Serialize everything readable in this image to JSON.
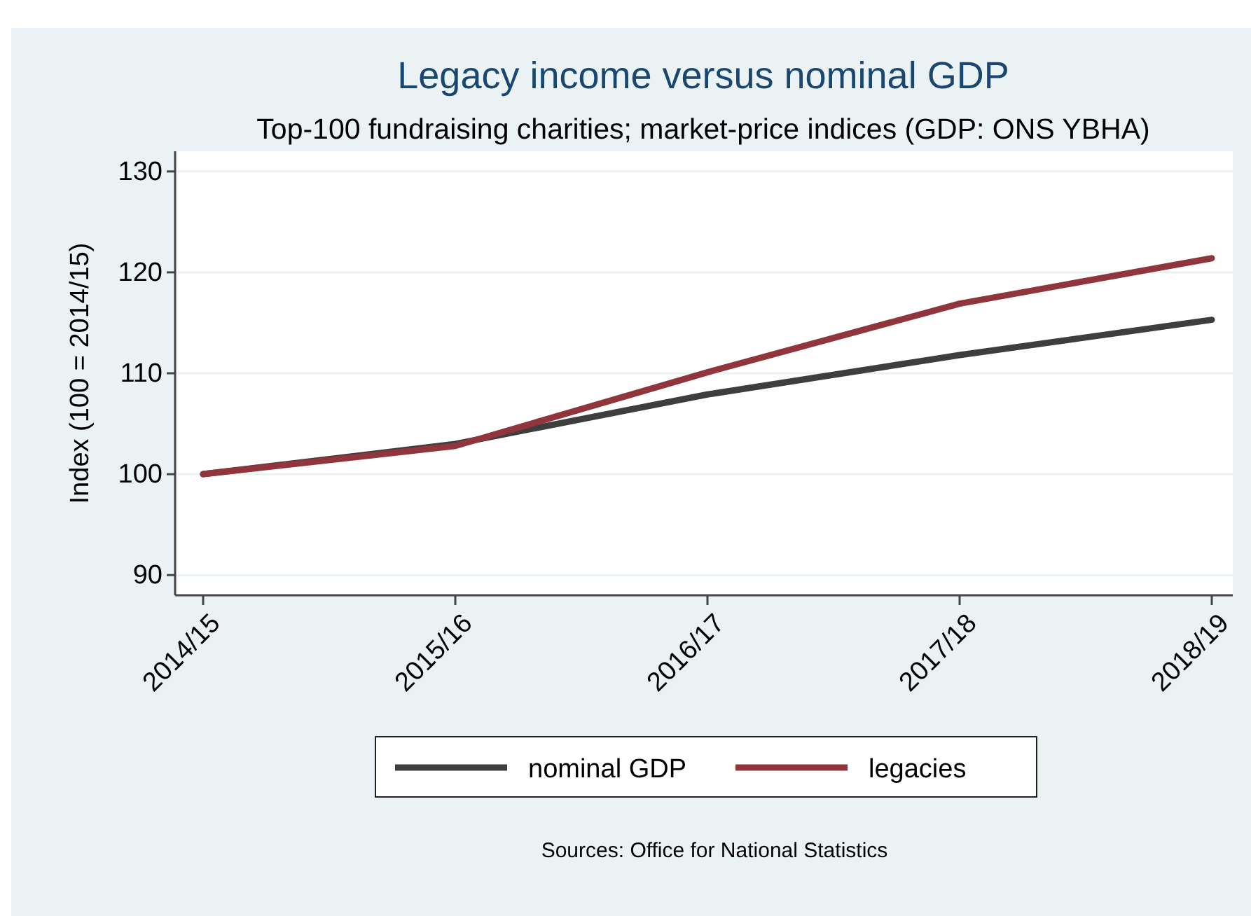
{
  "chart_data": {
    "type": "line",
    "title": "Legacy income versus nominal GDP",
    "subtitle": "Top-100 fundraising charities; market-price indices (GDP: ONS YBHA)",
    "ylabel": "Index (100 = 2014/15)",
    "categories": [
      "2014/15",
      "2015/16",
      "2016/17",
      "2017/18",
      "2018/19"
    ],
    "series": [
      {
        "name": "nominal GDP",
        "color": "#3e3e3e",
        "values": [
          100,
          103.0,
          107.9,
          111.8,
          115.3
        ]
      },
      {
        "name": "legacies",
        "color": "#90353b",
        "values": [
          100,
          102.8,
          110.1,
          116.9,
          121.4
        ]
      }
    ],
    "ylim": [
      88,
      132
    ],
    "yticks": [
      90,
      100,
      110,
      120,
      130
    ],
    "grid": "y",
    "legend": "bottom",
    "marker": "none",
    "line_style": "solid",
    "annotations": [
      "Sources: Office for National Statistics"
    ]
  }
}
